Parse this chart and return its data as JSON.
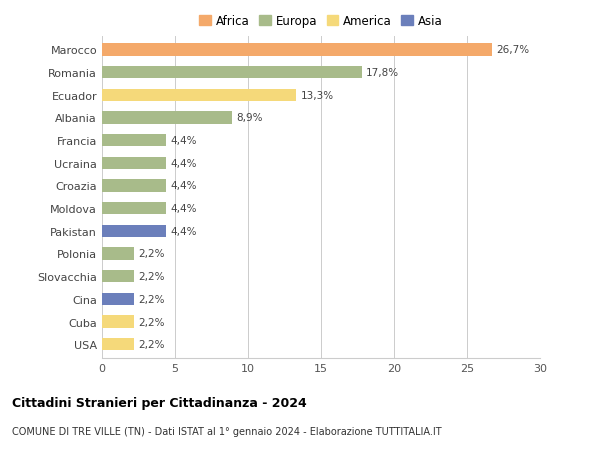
{
  "categories": [
    "Marocco",
    "Romania",
    "Ecuador",
    "Albania",
    "Francia",
    "Ucraina",
    "Croazia",
    "Moldova",
    "Pakistan",
    "Polonia",
    "Slovacchia",
    "Cina",
    "Cuba",
    "USA"
  ],
  "values": [
    26.7,
    17.8,
    13.3,
    8.9,
    4.4,
    4.4,
    4.4,
    4.4,
    4.4,
    2.2,
    2.2,
    2.2,
    2.2,
    2.2
  ],
  "labels": [
    "26,7%",
    "17,8%",
    "13,3%",
    "8,9%",
    "4,4%",
    "4,4%",
    "4,4%",
    "4,4%",
    "4,4%",
    "2,2%",
    "2,2%",
    "2,2%",
    "2,2%",
    "2,2%"
  ],
  "colors": [
    "#F4A96A",
    "#A8BB8A",
    "#F5D97A",
    "#A8BB8A",
    "#A8BB8A",
    "#A8BB8A",
    "#A8BB8A",
    "#A8BB8A",
    "#6B7FBB",
    "#A8BB8A",
    "#A8BB8A",
    "#6B7FBB",
    "#F5D97A",
    "#F5D97A"
  ],
  "legend_labels": [
    "Africa",
    "Europa",
    "America",
    "Asia"
  ],
  "legend_colors": [
    "#F4A96A",
    "#A8BB8A",
    "#F5D97A",
    "#6B7FBB"
  ],
  "title": "Cittadini Stranieri per Cittadinanza - 2024",
  "subtitle": "COMUNE DI TRE VILLE (TN) - Dati ISTAT al 1° gennaio 2024 - Elaborazione TUTTITALIA.IT",
  "xlim": [
    0,
    30
  ],
  "xticks": [
    0,
    5,
    10,
    15,
    20,
    25,
    30
  ],
  "background_color": "#ffffff",
  "grid_color": "#cccccc"
}
